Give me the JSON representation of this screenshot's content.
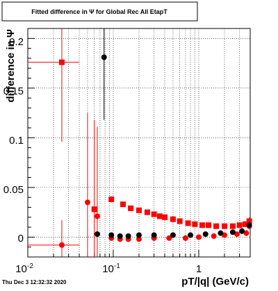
{
  "canvas": {
    "title": "Fitted difference in  Ψ  for Global Rec All EtapT",
    "timestamp": "Thu Dec  3 12:32:32 2020",
    "background": "#ffffff"
  },
  "chart_data": {
    "type": "scatter",
    "title": "Fitted difference in  Ψ  for Global Rec All EtapT",
    "xlabel": "pT/|q| (GeV/c)",
    "ylabel": "difference in Ψ",
    "x_scale": "log",
    "xlim": [
      0.01,
      4.0
    ],
    "ylim": [
      -0.02,
      0.21
    ],
    "x_tick_labels": [
      {
        "value": 0.01,
        "label": "10",
        "exponent": "-2"
      },
      {
        "value": 0.1,
        "label": "10",
        "exponent": "-1"
      },
      {
        "value": 1,
        "label": "1",
        "exponent": ""
      }
    ],
    "y_ticks": [
      0,
      0.05,
      0.1,
      0.15,
      0.2
    ],
    "y_tick_labels": [
      "0",
      "0.05",
      "0.1",
      "0.15",
      "0.2"
    ],
    "grid": true,
    "series": [
      {
        "marker": "square",
        "color": "#ff0000",
        "points": [
          {
            "x": 0.025,
            "y": 0.176,
            "xerr": [
              0.015,
              0.015
            ],
            "yerr": 0.08
          },
          {
            "x": 0.06,
            "y": 0.028,
            "xerr": [
              0.004,
              0.004
            ],
            "yerr": 0.09
          },
          {
            "x": 0.095,
            "y": 0.038,
            "xerr": [
              0.005,
              0.005
            ],
            "yerr": 0.003
          },
          {
            "x": 0.13,
            "y": 0.033,
            "yerr": 0.002
          },
          {
            "x": 0.16,
            "y": 0.029,
            "yerr": 0.002
          },
          {
            "x": 0.2,
            "y": 0.027,
            "yerr": 0.002
          },
          {
            "x": 0.25,
            "y": 0.025,
            "yerr": 0.002
          },
          {
            "x": 0.3,
            "y": 0.023,
            "yerr": 0.002
          },
          {
            "x": 0.35,
            "y": 0.021,
            "yerr": 0.002
          },
          {
            "x": 0.4,
            "y": 0.02,
            "yerr": 0.002
          },
          {
            "x": 0.5,
            "y": 0.018,
            "yerr": 0.002
          },
          {
            "x": 0.6,
            "y": 0.016,
            "yerr": 0.002
          },
          {
            "x": 0.75,
            "y": 0.014,
            "yerr": 0.002
          },
          {
            "x": 0.9,
            "y": 0.013,
            "yerr": 0.002
          },
          {
            "x": 1.1,
            "y": 0.012,
            "yerr": 0.002
          },
          {
            "x": 1.3,
            "y": 0.012,
            "yerr": 0.002
          },
          {
            "x": 1.6,
            "y": 0.011,
            "yerr": 0.002
          },
          {
            "x": 2.0,
            "y": 0.011,
            "yerr": 0.002
          },
          {
            "x": 2.5,
            "y": 0.011,
            "yerr": 0.002
          },
          {
            "x": 3.0,
            "y": 0.012,
            "yerr": 0.002
          },
          {
            "x": 3.5,
            "y": 0.013,
            "yerr": 0.003
          },
          {
            "x": 3.9,
            "y": 0.016,
            "yerr": 0.004
          }
        ]
      },
      {
        "marker": "circle",
        "color": "#ff0000",
        "points": [
          {
            "x": 0.025,
            "y": -0.008,
            "xerr": [
              0.015,
              0.015
            ],
            "yerr": 0.025
          },
          {
            "x": 0.05,
            "y": 0.035,
            "yerr": 0.09
          },
          {
            "x": 0.065,
            "y": 0.021,
            "yerr": 0.09
          },
          {
            "x": 0.095,
            "y": -0.001,
            "xerr": [
              0.005,
              0.005
            ],
            "yerr": 0.002
          },
          {
            "x": 0.12,
            "y": -0.002,
            "yerr": 0.002
          },
          {
            "x": 0.15,
            "y": -0.002,
            "yerr": 0.002
          },
          {
            "x": 0.2,
            "y": -0.002,
            "yerr": 0.002
          },
          {
            "x": 0.3,
            "y": -0.001,
            "yerr": 0.002
          },
          {
            "x": 0.45,
            "y": -0.001,
            "yerr": 0.002
          },
          {
            "x": 0.7,
            "y": -0.001,
            "yerr": 0.002
          },
          {
            "x": 1.0,
            "y": 0.0,
            "yerr": 0.002
          },
          {
            "x": 1.5,
            "y": 0.001,
            "yerr": 0.002
          },
          {
            "x": 2.0,
            "y": 0.002,
            "yerr": 0.002
          },
          {
            "x": 2.8,
            "y": 0.003,
            "yerr": 0.002
          },
          {
            "x": 3.6,
            "y": 0.004,
            "yerr": 0.003
          },
          {
            "x": 3.9,
            "y": 0.011,
            "yerr": 0.003
          }
        ]
      },
      {
        "marker": "circle",
        "color": "#000000",
        "points": [
          {
            "x": 0.078,
            "y": 0.181,
            "yerr": 0.063
          },
          {
            "x": 0.065,
            "y": 0.003,
            "yerr": 0.002
          },
          {
            "x": 0.095,
            "y": 0.002,
            "yerr": 0.002
          },
          {
            "x": 0.12,
            "y": 0.001,
            "yerr": 0.002
          },
          {
            "x": 0.15,
            "y": 0.001,
            "yerr": 0.002
          },
          {
            "x": 0.2,
            "y": 0.002,
            "yerr": 0.002
          },
          {
            "x": 0.3,
            "y": 0.002,
            "yerr": 0.002
          },
          {
            "x": 0.5,
            "y": 0.002,
            "yerr": 0.002
          },
          {
            "x": 0.8,
            "y": 0.002,
            "yerr": 0.002
          },
          {
            "x": 1.2,
            "y": 0.003,
            "yerr": 0.002
          },
          {
            "x": 1.8,
            "y": 0.004,
            "yerr": 0.002
          },
          {
            "x": 2.5,
            "y": 0.005,
            "yerr": 0.002
          },
          {
            "x": 3.2,
            "y": 0.006,
            "yerr": 0.003
          },
          {
            "x": 3.9,
            "y": 0.012,
            "yerr": 0.003
          }
        ]
      }
    ]
  }
}
